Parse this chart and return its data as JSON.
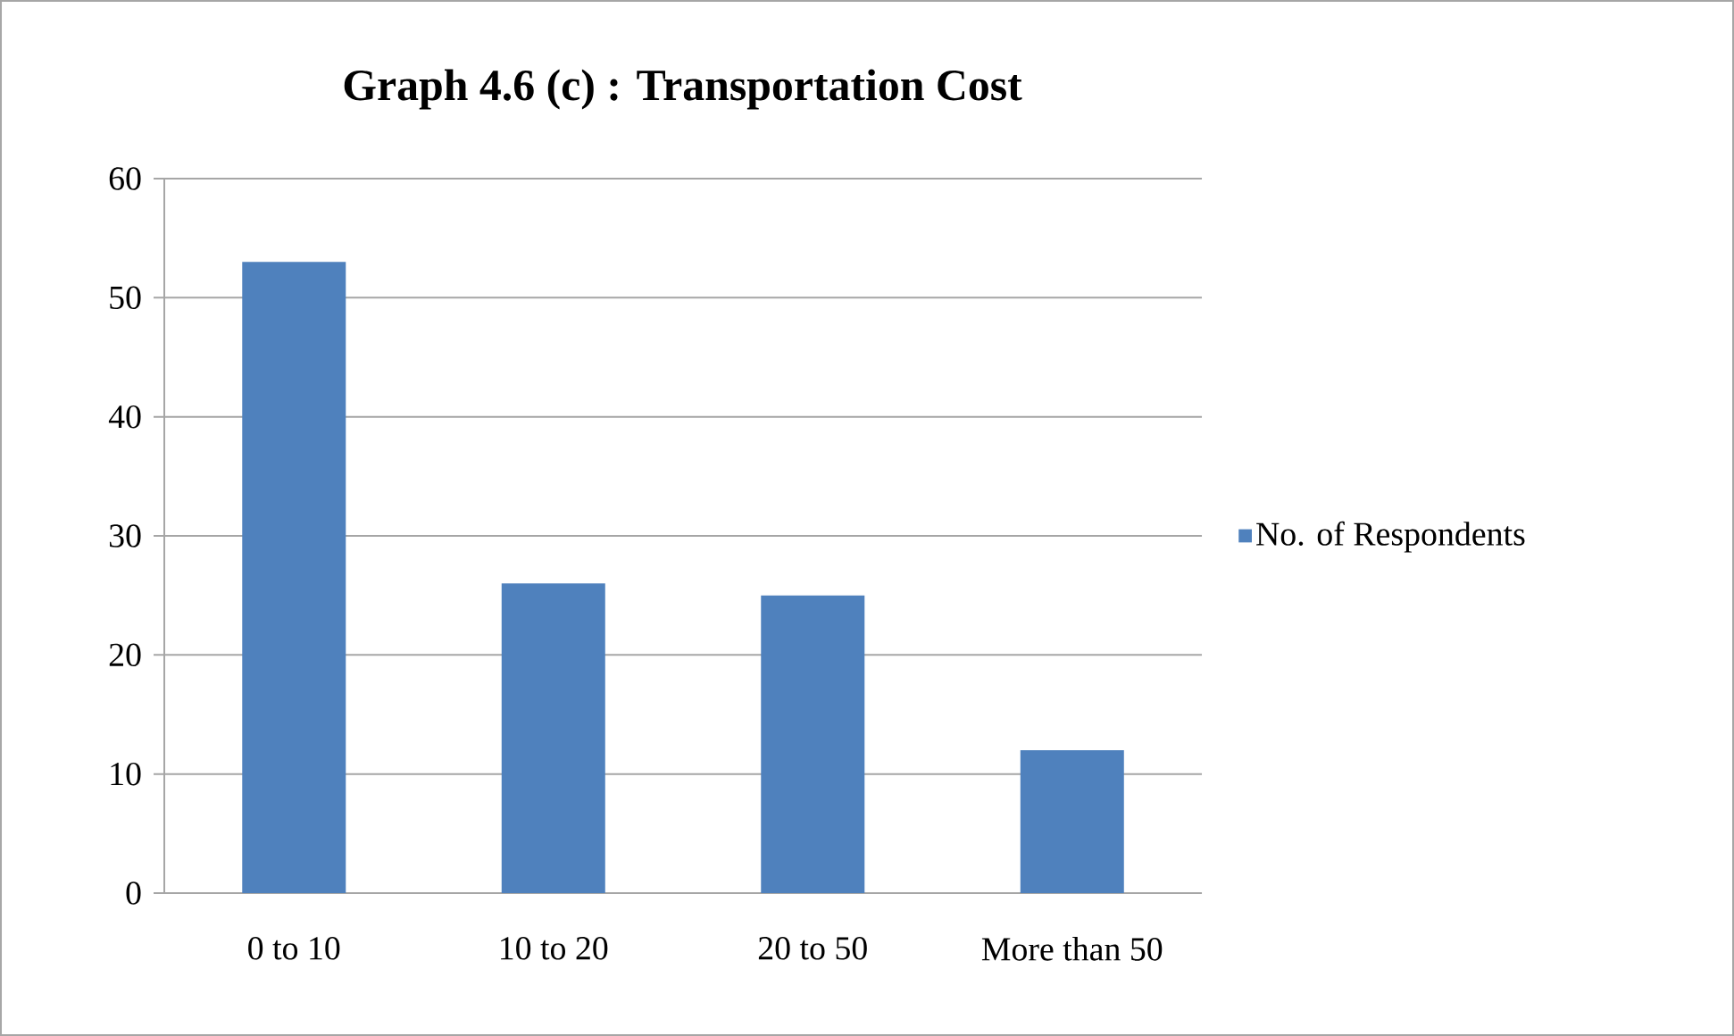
{
  "chart_data": {
    "type": "bar",
    "title": "Graph 4.6 (c) : Transportation Cost",
    "categories": [
      "0 to 10",
      "10 to 20",
      "20 to 50",
      "More than 50"
    ],
    "series": [
      {
        "name": "No. of Respondents",
        "color": "#4f81bd",
        "values": [
          53,
          26,
          25,
          12
        ]
      }
    ],
    "ylim": [
      0,
      60
    ],
    "yticks": [
      0,
      10,
      20,
      30,
      40,
      50,
      60
    ],
    "grid": "y",
    "legend": "right"
  }
}
